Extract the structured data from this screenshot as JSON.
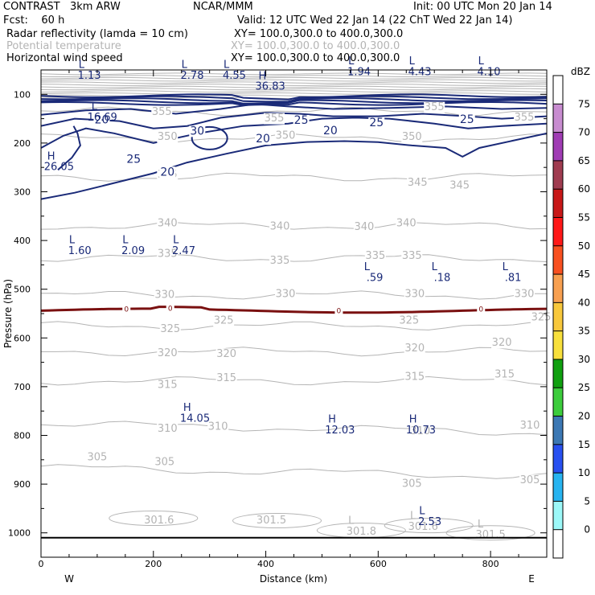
{
  "header": {
    "model": "CONTRAST   3km ARW",
    "center": "NCAR/MMM",
    "init": "Init: 00 UTC Mon 20 Jan 14",
    "fcst": "Fcst:    60 h",
    "valid": "Valid: 12 UTC Wed 22 Jan 14 (22 ChT Wed 22 Jan 14)",
    "fields": [
      {
        "name": "Radar reflectivity (lamda = 10 cm)",
        "xy": "XY= 100.0,300.0 to 400.0,300.0",
        "color": "#000000"
      },
      {
        "name": "Potential temperature",
        "xy": "XY= 100.0,300.0 to 400.0,300.0",
        "color": "#b4b4b4"
      },
      {
        "name": "Horizontal wind speed",
        "xy": "XY= 100.0,300.0 to 400.0,300.0",
        "color": "#000000"
      }
    ]
  },
  "chart_data": {
    "type": "contour",
    "xlabel": "Distance (km)",
    "ylabel": "Pressure (hPa)",
    "xlim": [
      0,
      900
    ],
    "ylim": [
      1050,
      50
    ],
    "x_ticks": [
      "0",
      "200",
      "400",
      "600",
      "800"
    ],
    "y_ticks": [
      "100",
      "200",
      "300",
      "400",
      "500",
      "600",
      "700",
      "800",
      "900",
      "1000"
    ],
    "x_ends": [
      "W",
      "E"
    ],
    "theta_labels": [
      {
        "x": 215,
        "p": 137,
        "text": "355"
      },
      {
        "x": 700,
        "p": 127,
        "text": "355"
      },
      {
        "x": 860,
        "p": 148,
        "text": "355"
      },
      {
        "x": 415,
        "p": 150,
        "text": "355"
      },
      {
        "x": 225,
        "p": 188,
        "text": "350"
      },
      {
        "x": 435,
        "p": 185,
        "text": "350"
      },
      {
        "x": 660,
        "p": 188,
        "text": "350"
      },
      {
        "x": 225,
        "p": 265,
        "text": "345"
      },
      {
        "x": 670,
        "p": 282,
        "text": "345"
      },
      {
        "x": 745,
        "p": 288,
        "text": "345"
      },
      {
        "x": 225,
        "p": 365,
        "text": "340"
      },
      {
        "x": 425,
        "p": 372,
        "text": "340"
      },
      {
        "x": 575,
        "p": 373,
        "text": "340"
      },
      {
        "x": 650,
        "p": 365,
        "text": "340"
      },
      {
        "x": 225,
        "p": 428,
        "text": "335"
      },
      {
        "x": 425,
        "p": 442,
        "text": "335"
      },
      {
        "x": 595,
        "p": 432,
        "text": "335"
      },
      {
        "x": 660,
        "p": 432,
        "text": "335"
      },
      {
        "x": 220,
        "p": 512,
        "text": "330"
      },
      {
        "x": 435,
        "p": 510,
        "text": "330"
      },
      {
        "x": 665,
        "p": 510,
        "text": "330"
      },
      {
        "x": 860,
        "p": 510,
        "text": "330"
      },
      {
        "x": 230,
        "p": 582,
        "text": "325"
      },
      {
        "x": 325,
        "p": 565,
        "text": "325"
      },
      {
        "x": 655,
        "p": 565,
        "text": "325"
      },
      {
        "x": 890,
        "p": 558,
        "text": "325"
      },
      {
        "x": 225,
        "p": 632,
        "text": "320"
      },
      {
        "x": 330,
        "p": 633,
        "text": "320"
      },
      {
        "x": 665,
        "p": 622,
        "text": "320"
      },
      {
        "x": 820,
        "p": 610,
        "text": "320"
      },
      {
        "x": 225,
        "p": 697,
        "text": "315"
      },
      {
        "x": 330,
        "p": 683,
        "text": "315"
      },
      {
        "x": 665,
        "p": 680,
        "text": "315"
      },
      {
        "x": 825,
        "p": 675,
        "text": "315"
      },
      {
        "x": 225,
        "p": 787,
        "text": "310"
      },
      {
        "x": 315,
        "p": 783,
        "text": "310"
      },
      {
        "x": 675,
        "p": 792,
        "text": "310"
      },
      {
        "x": 870,
        "p": 780,
        "text": "310"
      },
      {
        "x": 100,
        "p": 845,
        "text": "305"
      },
      {
        "x": 220,
        "p": 855,
        "text": "305"
      },
      {
        "x": 660,
        "p": 900,
        "text": "305"
      },
      {
        "x": 870,
        "p": 892,
        "text": "305"
      }
    ],
    "theta_extrema": [
      {
        "x": 210,
        "p": 975,
        "letter": "",
        "text": "301.6"
      },
      {
        "x": 410,
        "p": 975,
        "letter": "",
        "text": "301.5"
      },
      {
        "x": 570,
        "p": 998,
        "letter": "L",
        "text": "301.8"
      },
      {
        "x": 680,
        "p": 988,
        "letter": "L",
        "text": "301.6"
      },
      {
        "x": 800,
        "p": 1005,
        "letter": "L",
        "text": "301.5"
      }
    ],
    "wind_labels": [
      {
        "x": 108,
        "p": 153,
        "text": "20"
      },
      {
        "x": 278,
        "p": 176,
        "text": "30"
      },
      {
        "x": 463,
        "p": 154,
        "text": "25"
      },
      {
        "x": 515,
        "p": 175,
        "text": "20"
      },
      {
        "x": 395,
        "p": 192,
        "text": "20"
      },
      {
        "x": 597,
        "p": 159,
        "text": "25"
      },
      {
        "x": 758,
        "p": 152,
        "text": "25"
      },
      {
        "x": 165,
        "p": 234,
        "text": "25"
      },
      {
        "x": 225,
        "p": 260,
        "text": "20"
      }
    ],
    "wind_extrema": [
      {
        "x": 72,
        "p": 62,
        "letter": "L",
        "text": "1.13"
      },
      {
        "x": 255,
        "p": 62,
        "letter": "L",
        "text": "2.78"
      },
      {
        "x": 330,
        "p": 62,
        "letter": "L",
        "text": "4.55"
      },
      {
        "x": 394,
        "p": 85,
        "letter": "H",
        "text": "36.83"
      },
      {
        "x": 552,
        "p": 55,
        "letter": "L",
        "text": "1.94"
      },
      {
        "x": 660,
        "p": 55,
        "letter": "L",
        "text": "4.43"
      },
      {
        "x": 783,
        "p": 55,
        "letter": "L",
        "text": "4.10"
      },
      {
        "x": 95,
        "p": 148,
        "letter": "L",
        "text": "16.69"
      },
      {
        "x": 18,
        "p": 250,
        "letter": "H",
        "text": "26.05"
      },
      {
        "x": 55,
        "p": 422,
        "letter": "L",
        "text": "1.60"
      },
      {
        "x": 150,
        "p": 422,
        "letter": "L",
        "text": "2.09"
      },
      {
        "x": 240,
        "p": 422,
        "letter": "L",
        "text": "2.47"
      },
      {
        "x": 580,
        "p": 477,
        "letter": "L",
        "text": ".59"
      },
      {
        "x": 700,
        "p": 477,
        "letter": "L",
        "text": ".18"
      },
      {
        "x": 826,
        "p": 477,
        "letter": "L",
        "text": ".81"
      },
      {
        "x": 260,
        "p": 766,
        "letter": "H",
        "text": "14.05"
      },
      {
        "x": 518,
        "p": 790,
        "letter": "H",
        "text": "12.03"
      },
      {
        "x": 662,
        "p": 790,
        "letter": "H",
        "text": "10.73"
      },
      {
        "x": 678,
        "p": 978,
        "letter": "L",
        "text": "2.53"
      }
    ],
    "zero_labels": [
      {
        "x": 152,
        "p": 542,
        "text": "0"
      },
      {
        "x": 230,
        "p": 540,
        "text": "0"
      },
      {
        "x": 530,
        "p": 545,
        "text": "0"
      },
      {
        "x": 783,
        "p": 542,
        "text": "0"
      }
    ],
    "colorbar": {
      "unit": "dBZ",
      "levels": [
        "0",
        "5",
        "10",
        "15",
        "20",
        "25",
        "30",
        "35",
        "40",
        "45",
        "50",
        "55",
        "60",
        "65",
        "70",
        "75"
      ],
      "colors": [
        "#ffffff",
        "#9cf8f8",
        "#28b4f0",
        "#2850f0",
        "#3c78b4",
        "#3ccc3c",
        "#10a010",
        "#f8e03c",
        "#f8c83c",
        "#f8a050",
        "#f85020",
        "#ff1818",
        "#c81818",
        "#a03c50",
        "#a03cb4",
        "#c88cd0",
        "#ffffff"
      ]
    }
  }
}
